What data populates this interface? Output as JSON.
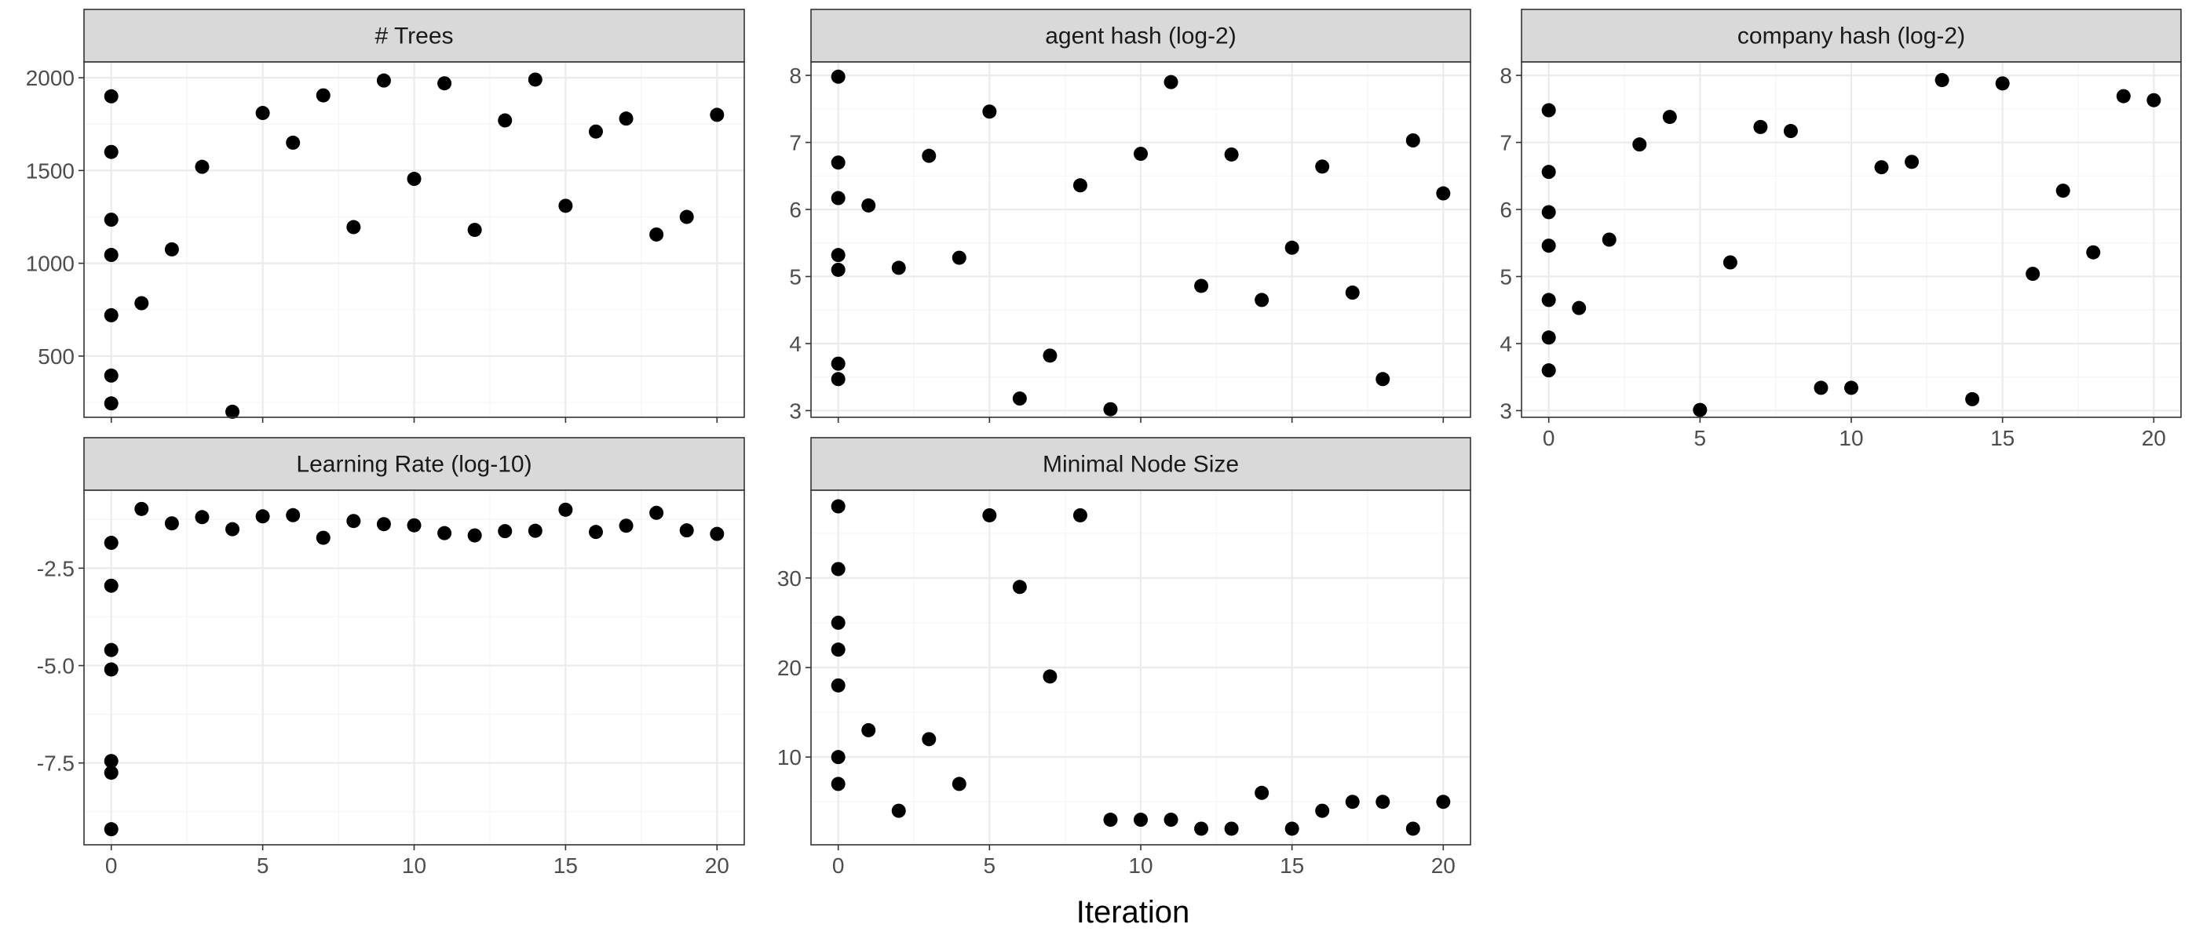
{
  "chart_data": [
    {
      "type": "scatter",
      "title": "# Trees",
      "x": [
        0,
        0,
        0,
        0,
        0,
        0,
        0,
        1,
        2,
        3,
        4,
        5,
        6,
        7,
        8,
        9,
        10,
        11,
        12,
        13,
        14,
        15,
        16,
        17,
        18,
        19,
        20
      ],
      "y": [
        1900,
        1600,
        1235,
        1045,
        720,
        395,
        245,
        785,
        1075,
        1520,
        200,
        1810,
        1650,
        1905,
        1195,
        1985,
        1455,
        1970,
        1180,
        1770,
        1990,
        1310,
        1710,
        1780,
        1155,
        1250,
        1800
      ],
      "xlim": [
        -0.9,
        20.9
      ],
      "ylim": [
        170,
        2085
      ],
      "xticks": [
        0,
        5,
        10,
        15,
        20
      ],
      "yticks": [
        500,
        1000,
        1500,
        2000
      ],
      "ytick_labels": [
        "500",
        "1000",
        "1500",
        "2000"
      ],
      "show_x_labels": false
    },
    {
      "type": "scatter",
      "title": "agent hash (log-2)",
      "x": [
        0,
        0,
        0,
        0,
        0,
        0,
        0,
        1,
        2,
        3,
        4,
        5,
        6,
        7,
        8,
        9,
        10,
        11,
        12,
        13,
        14,
        15,
        16,
        17,
        18,
        19,
        20
      ],
      "y": [
        7.98,
        6.7,
        6.17,
        5.32,
        5.1,
        3.7,
        3.47,
        6.06,
        5.13,
        6.8,
        5.28,
        7.46,
        3.18,
        3.82,
        6.36,
        3.02,
        6.83,
        7.9,
        4.86,
        6.82,
        4.65,
        5.43,
        6.64,
        4.76,
        3.47,
        7.03,
        6.24
      ],
      "xlim": [
        -0.9,
        20.9
      ],
      "ylim": [
        2.9,
        8.2
      ],
      "xticks": [
        0,
        5,
        10,
        15,
        20
      ],
      "yticks": [
        3,
        4,
        5,
        6,
        7,
        8
      ],
      "ytick_labels": [
        "3",
        "4",
        "5",
        "6",
        "7",
        "8"
      ],
      "show_x_labels": false
    },
    {
      "type": "scatter",
      "title": "company hash (log-2)",
      "x": [
        0,
        0,
        0,
        0,
        0,
        0,
        0,
        1,
        2,
        3,
        4,
        5,
        6,
        7,
        8,
        9,
        10,
        11,
        12,
        13,
        14,
        15,
        16,
        17,
        18,
        19,
        20
      ],
      "y": [
        7.48,
        6.56,
        5.96,
        5.46,
        4.65,
        4.09,
        3.6,
        4.53,
        5.55,
        6.97,
        7.38,
        3.01,
        5.21,
        7.23,
        7.17,
        3.34,
        3.34,
        6.63,
        6.71,
        7.93,
        3.17,
        7.88,
        5.04,
        6.28,
        5.36,
        7.69,
        7.63
      ],
      "xlim": [
        -0.9,
        20.9
      ],
      "ylim": [
        2.9,
        8.2
      ],
      "xticks": [
        0,
        5,
        10,
        15,
        20
      ],
      "yticks": [
        3,
        4,
        5,
        6,
        7,
        8
      ],
      "ytick_labels": [
        "3",
        "4",
        "5",
        "6",
        "7",
        "8"
      ],
      "show_x_labels": true
    },
    {
      "type": "scatter",
      "title": "Learning Rate (log-10)",
      "x": [
        0,
        0,
        0,
        0,
        0,
        0,
        0,
        1,
        2,
        3,
        4,
        5,
        6,
        7,
        8,
        9,
        10,
        11,
        12,
        13,
        14,
        15,
        16,
        17,
        18,
        19,
        20
      ],
      "y": [
        -1.85,
        -2.95,
        -4.6,
        -5.1,
        -7.45,
        -7.75,
        -9.2,
        -0.98,
        -1.35,
        -1.19,
        -1.5,
        -1.17,
        -1.14,
        -1.72,
        -1.29,
        -1.37,
        -1.4,
        -1.6,
        -1.66,
        -1.55,
        -1.54,
        -1.0,
        -1.57,
        -1.41,
        -1.08,
        -1.53,
        -1.62
      ],
      "xlim": [
        -0.9,
        20.9
      ],
      "ylim": [
        -9.6,
        -0.5
      ],
      "xticks": [
        0,
        5,
        10,
        15,
        20
      ],
      "yticks": [
        -7.5,
        -5.0,
        -2.5
      ],
      "ytick_labels": [
        "-7.5",
        "-5.0",
        "-2.5"
      ],
      "show_x_labels": true
    },
    {
      "type": "scatter",
      "title": "Minimal Node Size",
      "x": [
        0,
        0,
        0,
        0,
        0,
        0,
        0,
        1,
        2,
        3,
        4,
        5,
        6,
        7,
        8,
        9,
        10,
        11,
        12,
        13,
        14,
        15,
        16,
        17,
        18,
        19,
        20
      ],
      "y": [
        38,
        31,
        25,
        22,
        18,
        10,
        7,
        13,
        4,
        12,
        7,
        37,
        29,
        19,
        37,
        3,
        3,
        3,
        2,
        2,
        6,
        2,
        4,
        5,
        5,
        2,
        5
      ],
      "xlim": [
        -0.9,
        20.9
      ],
      "ylim": [
        0.2,
        39.8
      ],
      "xticks": [
        0,
        5,
        10,
        15,
        20
      ],
      "yticks": [
        10,
        20,
        30
      ],
      "ytick_labels": [
        "10",
        "20",
        "30"
      ],
      "show_x_labels": true
    }
  ],
  "xlabel": "Iteration",
  "xtick_labels": [
    "0",
    "5",
    "10",
    "15",
    "20"
  ],
  "colors": {
    "point": "#000000",
    "strip_bg": "#d9d9d9",
    "grid": "#ebebeb",
    "border": "#333333"
  }
}
